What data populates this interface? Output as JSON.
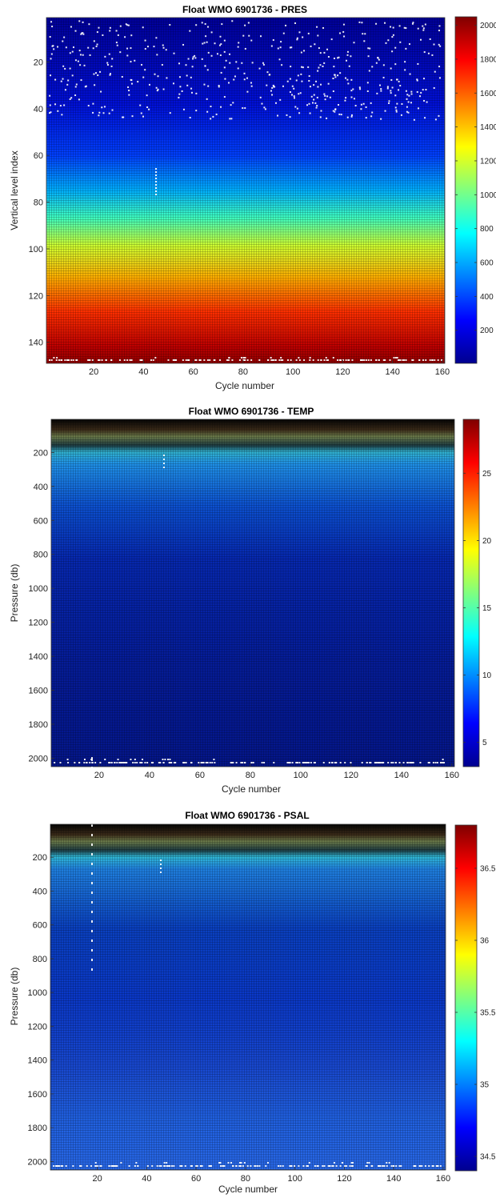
{
  "chart_data": [
    {
      "type": "heatmap",
      "title": "Float WMO 6901736 - PRES",
      "xlabel": "Cycle number",
      "ylabel": "Vertical level index",
      "xlim": [
        1,
        161
      ],
      "ylim": [
        1,
        149
      ],
      "y_reversed": true,
      "x_ticks": [
        20,
        40,
        60,
        80,
        100,
        120,
        140,
        160
      ],
      "y_ticks": [
        20,
        40,
        60,
        80,
        100,
        120,
        140
      ],
      "colorbar": {
        "min": 5,
        "max": 2050,
        "ticks": [
          200,
          400,
          600,
          800,
          1000,
          1200,
          1400,
          1600,
          1800,
          2000
        ]
      },
      "colormap": "jet",
      "grid_color": "#000000",
      "missing_color": "#ffffff"
    },
    {
      "type": "heatmap",
      "title": "Float WMO 6901736 - TEMP",
      "xlabel": "Cycle number",
      "ylabel": "Pressure (db)",
      "xlim": [
        1,
        161
      ],
      "ylim": [
        5,
        2050
      ],
      "y_reversed": true,
      "x_ticks": [
        20,
        40,
        60,
        80,
        100,
        120,
        140,
        160
      ],
      "y_ticks": [
        200,
        400,
        600,
        800,
        1000,
        1200,
        1400,
        1600,
        1800,
        2000
      ],
      "colorbar": {
        "min": 3.2,
        "max": 29,
        "ticks": [
          5,
          10,
          15,
          20,
          25
        ]
      },
      "colormap": "jet",
      "grid_color": "#000000",
      "missing_color": "#ffffff"
    },
    {
      "type": "heatmap",
      "title": "Float WMO 6901736 - PSAL",
      "xlabel": "Cycle number",
      "ylabel": "Pressure (db)",
      "xlim": [
        1,
        161
      ],
      "ylim": [
        5,
        2050
      ],
      "y_reversed": true,
      "x_ticks": [
        20,
        40,
        60,
        80,
        100,
        120,
        140,
        160
      ],
      "y_ticks": [
        200,
        400,
        600,
        800,
        1000,
        1200,
        1400,
        1600,
        1800,
        2000
      ],
      "colorbar": {
        "min": 34.4,
        "max": 36.8,
        "ticks": [
          34.5,
          35,
          35.5,
          36,
          36.5
        ]
      },
      "colormap": "jet",
      "grid_color": "#000000",
      "missing_color": "#ffffff"
    }
  ]
}
